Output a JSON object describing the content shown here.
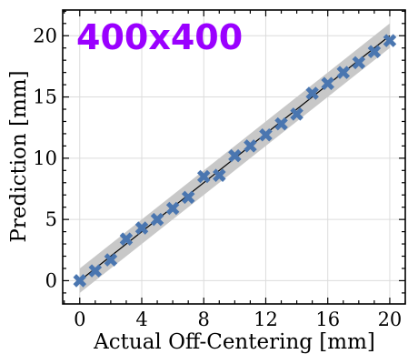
{
  "chart_data": {
    "type": "scatter",
    "title": "",
    "overlay_text": "400x400",
    "xlabel": "Actual Off-Centering [mm]",
    "ylabel": "Prediction [mm]",
    "xlim": [
      -1.1,
      21.0
    ],
    "ylim": [
      -1.9,
      22.1
    ],
    "xticks": [
      0,
      4,
      8,
      12,
      16,
      20
    ],
    "yticks": [
      0,
      5,
      10,
      15,
      20
    ],
    "grid": true,
    "reference_line": {
      "from": [
        0,
        0
      ],
      "to": [
        20,
        20
      ],
      "color": "#000000"
    },
    "band": {
      "half_width": 1.0,
      "color": "#c8c8c8"
    },
    "series": [
      {
        "marker": "x",
        "color": "#4a76b0",
        "x": [
          0,
          1,
          2,
          3,
          4,
          5,
          6,
          7,
          8,
          9,
          10,
          11,
          12,
          13,
          14,
          15,
          16,
          17,
          18,
          19,
          20
        ],
        "y": [
          0.0,
          0.8,
          1.7,
          3.4,
          4.3,
          5.0,
          5.9,
          6.8,
          8.5,
          8.6,
          10.2,
          11.0,
          11.9,
          12.8,
          13.6,
          15.3,
          16.1,
          17.0,
          17.8,
          18.7,
          19.6
        ]
      }
    ],
    "colors": {
      "title": "#9a00ff",
      "grid": "#dcdcdc",
      "axes": "#000000"
    }
  }
}
